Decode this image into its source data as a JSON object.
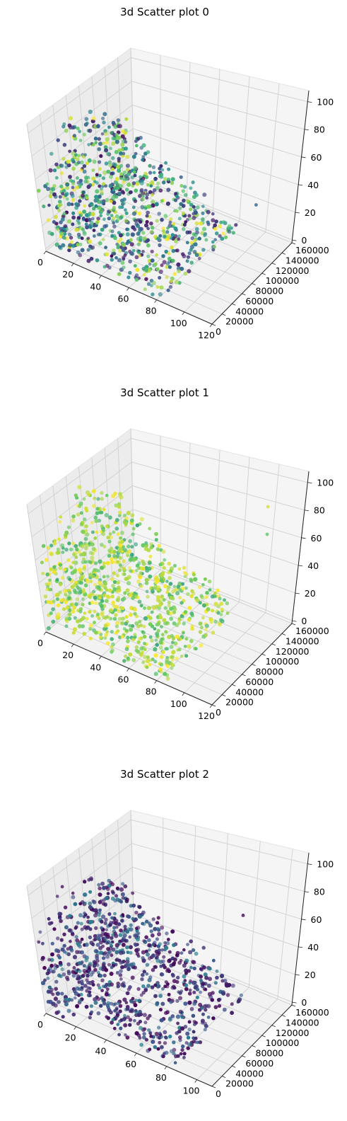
{
  "chart_data": [
    {
      "type": "scatter",
      "subtype": "3d",
      "title": "3d Scatter plot 0",
      "xlim": [
        0,
        120
      ],
      "ylim": [
        0,
        160000
      ],
      "zlim": [
        0,
        100
      ],
      "x_ticks": [
        "0",
        "20",
        "40",
        "60",
        "80",
        "100",
        "120"
      ],
      "y_ticks": [
        "0",
        "20000",
        "40000",
        "60000",
        "80000",
        "100000",
        "120000",
        "140000",
        "160000"
      ],
      "z_ticks": [
        "0",
        "20",
        "40",
        "60",
        "80",
        "100"
      ],
      "xlabel": "",
      "ylabel": "",
      "zlabel": "",
      "grid": true,
      "colormap": "viridis",
      "color_profile": "full",
      "points_summary": {
        "x_range": [
          0,
          85
        ],
        "y_range": [
          0,
          140000
        ],
        "z_range": [
          0,
          100
        ],
        "density": "dense block near low x, spread along y"
      },
      "outliers": [
        [
          95,
          150000,
          20
        ],
        [
          55,
          20000,
          35
        ],
        [
          42,
          3000,
          5
        ]
      ]
    },
    {
      "type": "scatter",
      "subtype": "3d",
      "title": "3d Scatter plot 1",
      "xlim": [
        0,
        120
      ],
      "ylim": [
        0,
        160000
      ],
      "zlim": [
        0,
        100
      ],
      "x_ticks": [
        "0",
        "20",
        "40",
        "60",
        "80",
        "100",
        "120"
      ],
      "y_ticks": [
        "0",
        "20000",
        "40000",
        "60000",
        "80000",
        "100000",
        "120000",
        "140000",
        "160000"
      ],
      "z_ticks": [
        "0",
        "20",
        "40",
        "60",
        "80",
        "100"
      ],
      "xlabel": "",
      "ylabel": "",
      "zlabel": "",
      "grid": true,
      "colormap": "viridis",
      "color_profile": "high",
      "points_summary": {
        "x_range": [
          0,
          85
        ],
        "y_range": [
          0,
          140000
        ],
        "z_range": [
          0,
          100
        ],
        "density": "dense block near low x, spread along y"
      },
      "outliers": [
        [
          100,
          150000,
          60
        ],
        [
          95,
          160000,
          75
        ],
        [
          70,
          20000,
          20
        ]
      ]
    },
    {
      "type": "scatter",
      "subtype": "3d",
      "title": "3d Scatter plot 2",
      "xlim": [
        0,
        110
      ],
      "ylim": [
        0,
        160000
      ],
      "zlim": [
        0,
        100
      ],
      "x_ticks": [
        "0",
        "20",
        "40",
        "60",
        "80",
        "100"
      ],
      "y_ticks": [
        "0",
        "20000",
        "40000",
        "60000",
        "80000",
        "100000",
        "120000",
        "140000",
        "160000"
      ],
      "z_ticks": [
        "0",
        "20",
        "40",
        "60",
        "80",
        "100"
      ],
      "xlabel": "",
      "ylabel": "",
      "zlabel": "",
      "grid": true,
      "colormap": "viridis",
      "color_profile": "low",
      "points_summary": {
        "x_range": [
          0,
          85
        ],
        "y_range": [
          0,
          140000
        ],
        "z_range": [
          0,
          100
        ],
        "density": "dense block near low x, spread along y"
      },
      "outliers": [
        [
          70,
          20000,
          10
        ],
        [
          80,
          140000,
          60
        ]
      ]
    }
  ]
}
